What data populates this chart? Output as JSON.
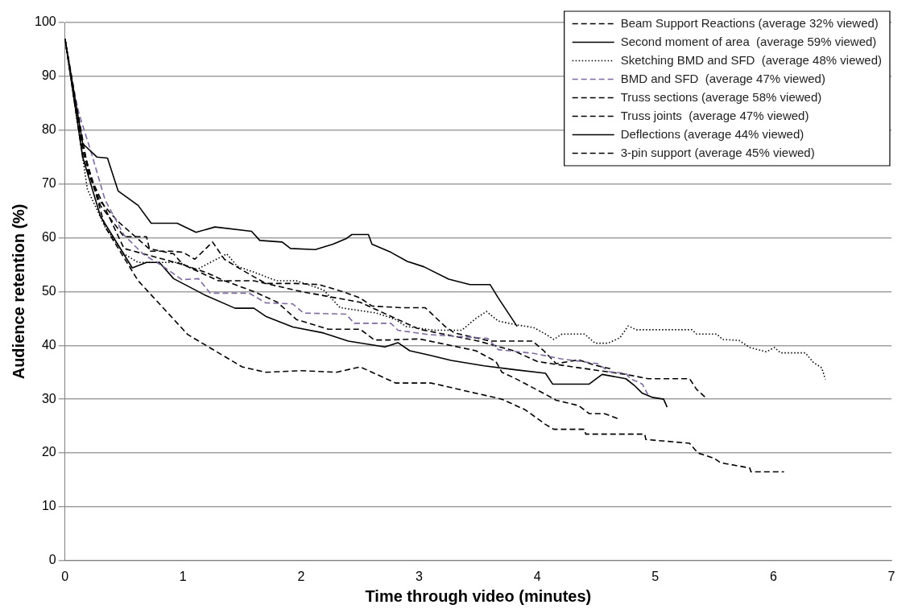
{
  "chart_data": {
    "type": "line",
    "xlabel": "Time through video (minutes)",
    "ylabel": "Audience retention (%)",
    "xlim": [
      0,
      7
    ],
    "ylim": [
      0,
      100
    ],
    "xticks": [
      0,
      1,
      2,
      3,
      4,
      5,
      6,
      7
    ],
    "yticks": [
      0,
      10,
      20,
      30,
      40,
      50,
      60,
      70,
      80,
      90,
      100
    ],
    "grid": "y",
    "legend": "top right",
    "marker": "none",
    "series": [
      {
        "name": "Beam Support Reactions (average 32% viewed)",
        "color": "#000000",
        "line_style": "dashed",
        "x": [
          0,
          0.15,
          0.34,
          0.62,
          1.04,
          1.5,
          1.7,
          2.0,
          2.3,
          2.5,
          2.7,
          2.8,
          3.1,
          3.3,
          3.5,
          3.7,
          3.9,
          4.07,
          4.14,
          4.4,
          4.41,
          4.91,
          4.92,
          5.29,
          5.36,
          5.5,
          5.55,
          5.8,
          5.81,
          6.09
        ],
        "values": [
          97,
          77,
          62,
          52,
          42,
          36,
          35,
          35.3,
          35,
          36,
          34,
          33,
          33,
          32,
          31,
          30,
          28,
          25.3,
          24.4,
          24.4,
          23.5,
          23.5,
          22.5,
          21.8,
          20,
          19,
          18.2,
          17.2,
          16.5,
          16.5
        ]
      },
      {
        "name": "Second moment of area  (average 59% viewed)",
        "color": "#000000",
        "line_style": "solid",
        "x": [
          0,
          0.15,
          0.27,
          0.36,
          0.45,
          0.62,
          0.73,
          0.95,
          1.11,
          1.27,
          1.58,
          1.65,
          1.84,
          1.91,
          2.12,
          2.27,
          2.38,
          2.43,
          2.57,
          2.6,
          2.76,
          2.9,
          3.04,
          3.25,
          3.43,
          3.6,
          3.67,
          3.83
        ],
        "values": [
          97,
          77.5,
          75,
          74.8,
          68.7,
          66,
          62.7,
          62.7,
          61,
          62,
          61.2,
          59.5,
          59.2,
          58,
          57.8,
          58.8,
          59.8,
          60.6,
          60.6,
          58.8,
          57.3,
          55.6,
          54.6,
          52.3,
          51.3,
          51.3,
          48.8,
          43.5
        ]
      },
      {
        "name": "Sketching BMD and SFD  (average 48% viewed)",
        "color": "#000000",
        "line_style": "dotted",
        "x": [
          0,
          0.19,
          0.34,
          0.5,
          0.62,
          0.97,
          1.11,
          1.23,
          1.37,
          1.46,
          1.65,
          1.79,
          1.96,
          2.19,
          2.33,
          2.64,
          2.8,
          2.89,
          3.13,
          3.36,
          3.48,
          3.57,
          3.67,
          3.83,
          3.97,
          4.07,
          4.14,
          4.21,
          4.4,
          4.49,
          4.6,
          4.7,
          4.77,
          4.84,
          5.31,
          5.35,
          5.52,
          5.57,
          5.71,
          5.8,
          5.94,
          6.01,
          6.06,
          6.27,
          6.34,
          6.41,
          6.44
        ],
        "values": [
          97,
          69,
          62,
          57,
          55.4,
          55.4,
          54,
          55.4,
          57,
          54.7,
          53.2,
          52,
          52,
          50.3,
          47,
          46,
          44.8,
          43.5,
          42.8,
          42.8,
          45,
          46.3,
          44.5,
          43.8,
          43.3,
          42.1,
          41.1,
          42.1,
          42.1,
          40.4,
          40.4,
          41.4,
          43.6,
          42.9,
          42.9,
          42.1,
          42.1,
          41.1,
          40.9,
          39.6,
          38.8,
          39.6,
          38.6,
          38.6,
          36.8,
          35.8,
          33.7
        ]
      },
      {
        "name": "BMD and SFD  (average 47% viewed)",
        "color": "#7f6a9f",
        "line_style": "dashed",
        "x": [
          0,
          0.05,
          0.12,
          0.22,
          0.34,
          0.5,
          0.66,
          0.85,
          0.99,
          1.13,
          1.23,
          1.56,
          1.7,
          1.93,
          2.02,
          2.38,
          2.45,
          2.76,
          2.82,
          3.08,
          3.58,
          3.67,
          3.97,
          4.2,
          4.51,
          4.61,
          4.75,
          4.79,
          4.89,
          4.95
        ],
        "values": [
          97,
          90,
          83,
          76,
          67,
          60.5,
          57,
          54.4,
          52.2,
          52.4,
          49.7,
          49.7,
          47.9,
          47.7,
          46,
          45.8,
          44.1,
          44.1,
          42.8,
          42,
          41.3,
          39.2,
          38.5,
          37.5,
          36.6,
          35.1,
          34.8,
          33.8,
          32.8,
          30.3
        ]
      },
      {
        "name": "Truss sections (average 58% viewed)",
        "color": "#000000",
        "line_style": "dashed",
        "x": [
          0,
          0.15,
          0.3,
          0.5,
          0.69,
          0.72,
          0.9,
          1.0,
          1.1,
          1.25,
          1.35,
          1.5,
          1.7,
          1.95,
          2.15,
          2.35,
          2.5,
          2.6,
          2.85,
          3.05,
          3.1,
          3.22,
          3.3,
          3.6,
          3.96,
          4.05,
          4.16,
          4.35,
          4.49,
          4.63
        ],
        "values": [
          97,
          75,
          66,
          60.2,
          60.2,
          57.5,
          57.5,
          57.3,
          56,
          59.2,
          56,
          54,
          51.5,
          51.5,
          51.3,
          50,
          48.8,
          47.3,
          47,
          47,
          46,
          43.5,
          42.3,
          40.8,
          40.8,
          39.1,
          36.6,
          37.3,
          36.3,
          35.6
        ]
      },
      {
        "name": "Truss joints  (average 47% viewed)",
        "color": "#000000",
        "line_style": "dashed",
        "x": [
          0,
          0.2,
          0.5,
          1.0,
          1.3,
          1.6,
          2.0,
          2.5,
          3.0,
          3.5,
          3.8,
          4.0,
          4.3,
          4.75,
          4.94,
          5.29,
          5.35,
          5.43
        ],
        "values": [
          97,
          72,
          58,
          55,
          52,
          52,
          50,
          48,
          43,
          40.8,
          39,
          37,
          36,
          34.6,
          33.8,
          33.8,
          31.8,
          30.2
        ]
      },
      {
        "name": "Deflections (average 44% viewed)",
        "color": "#000000",
        "line_style": "solid",
        "x": [
          0,
          0.15,
          0.3,
          0.57,
          0.69,
          0.8,
          0.92,
          1.18,
          1.44,
          1.6,
          1.7,
          1.93,
          2.19,
          2.4,
          2.71,
          2.82,
          2.92,
          3.08,
          3.27,
          3.55,
          3.8,
          4.07,
          4.13,
          4.44,
          4.55,
          4.75,
          4.82,
          4.89,
          4.98,
          5.07,
          5.1
        ],
        "values": [
          97,
          75,
          64,
          54.4,
          55.4,
          55.4,
          52.4,
          49.4,
          46.9,
          46.9,
          45.4,
          43.4,
          42.3,
          40.8,
          39.7,
          40.5,
          39,
          38.2,
          37.2,
          36.2,
          35.5,
          34.8,
          32.8,
          32.8,
          34.6,
          33.8,
          32.6,
          31.1,
          30.3,
          30,
          28.5
        ]
      },
      {
        "name": "3-pin support (average 45% viewed)",
        "color": "#000000",
        "line_style": "dashed",
        "x": [
          0,
          0.15,
          0.29,
          0.45,
          0.71,
          0.92,
          1.0,
          1.2,
          1.35,
          1.6,
          1.8,
          1.96,
          2.23,
          2.5,
          2.62,
          2.74,
          3.0,
          3.48,
          3.65,
          3.7,
          3.8,
          4.07,
          4.16,
          4.35,
          4.44,
          4.57,
          4.68
        ],
        "values": [
          97,
          76,
          67,
          63,
          58,
          57,
          55,
          53.5,
          52,
          50,
          48,
          44.8,
          43,
          43,
          41,
          41,
          41.2,
          39,
          37,
          35,
          34,
          30.9,
          29.8,
          28.8,
          27.3,
          27.3,
          26.4
        ]
      }
    ]
  }
}
